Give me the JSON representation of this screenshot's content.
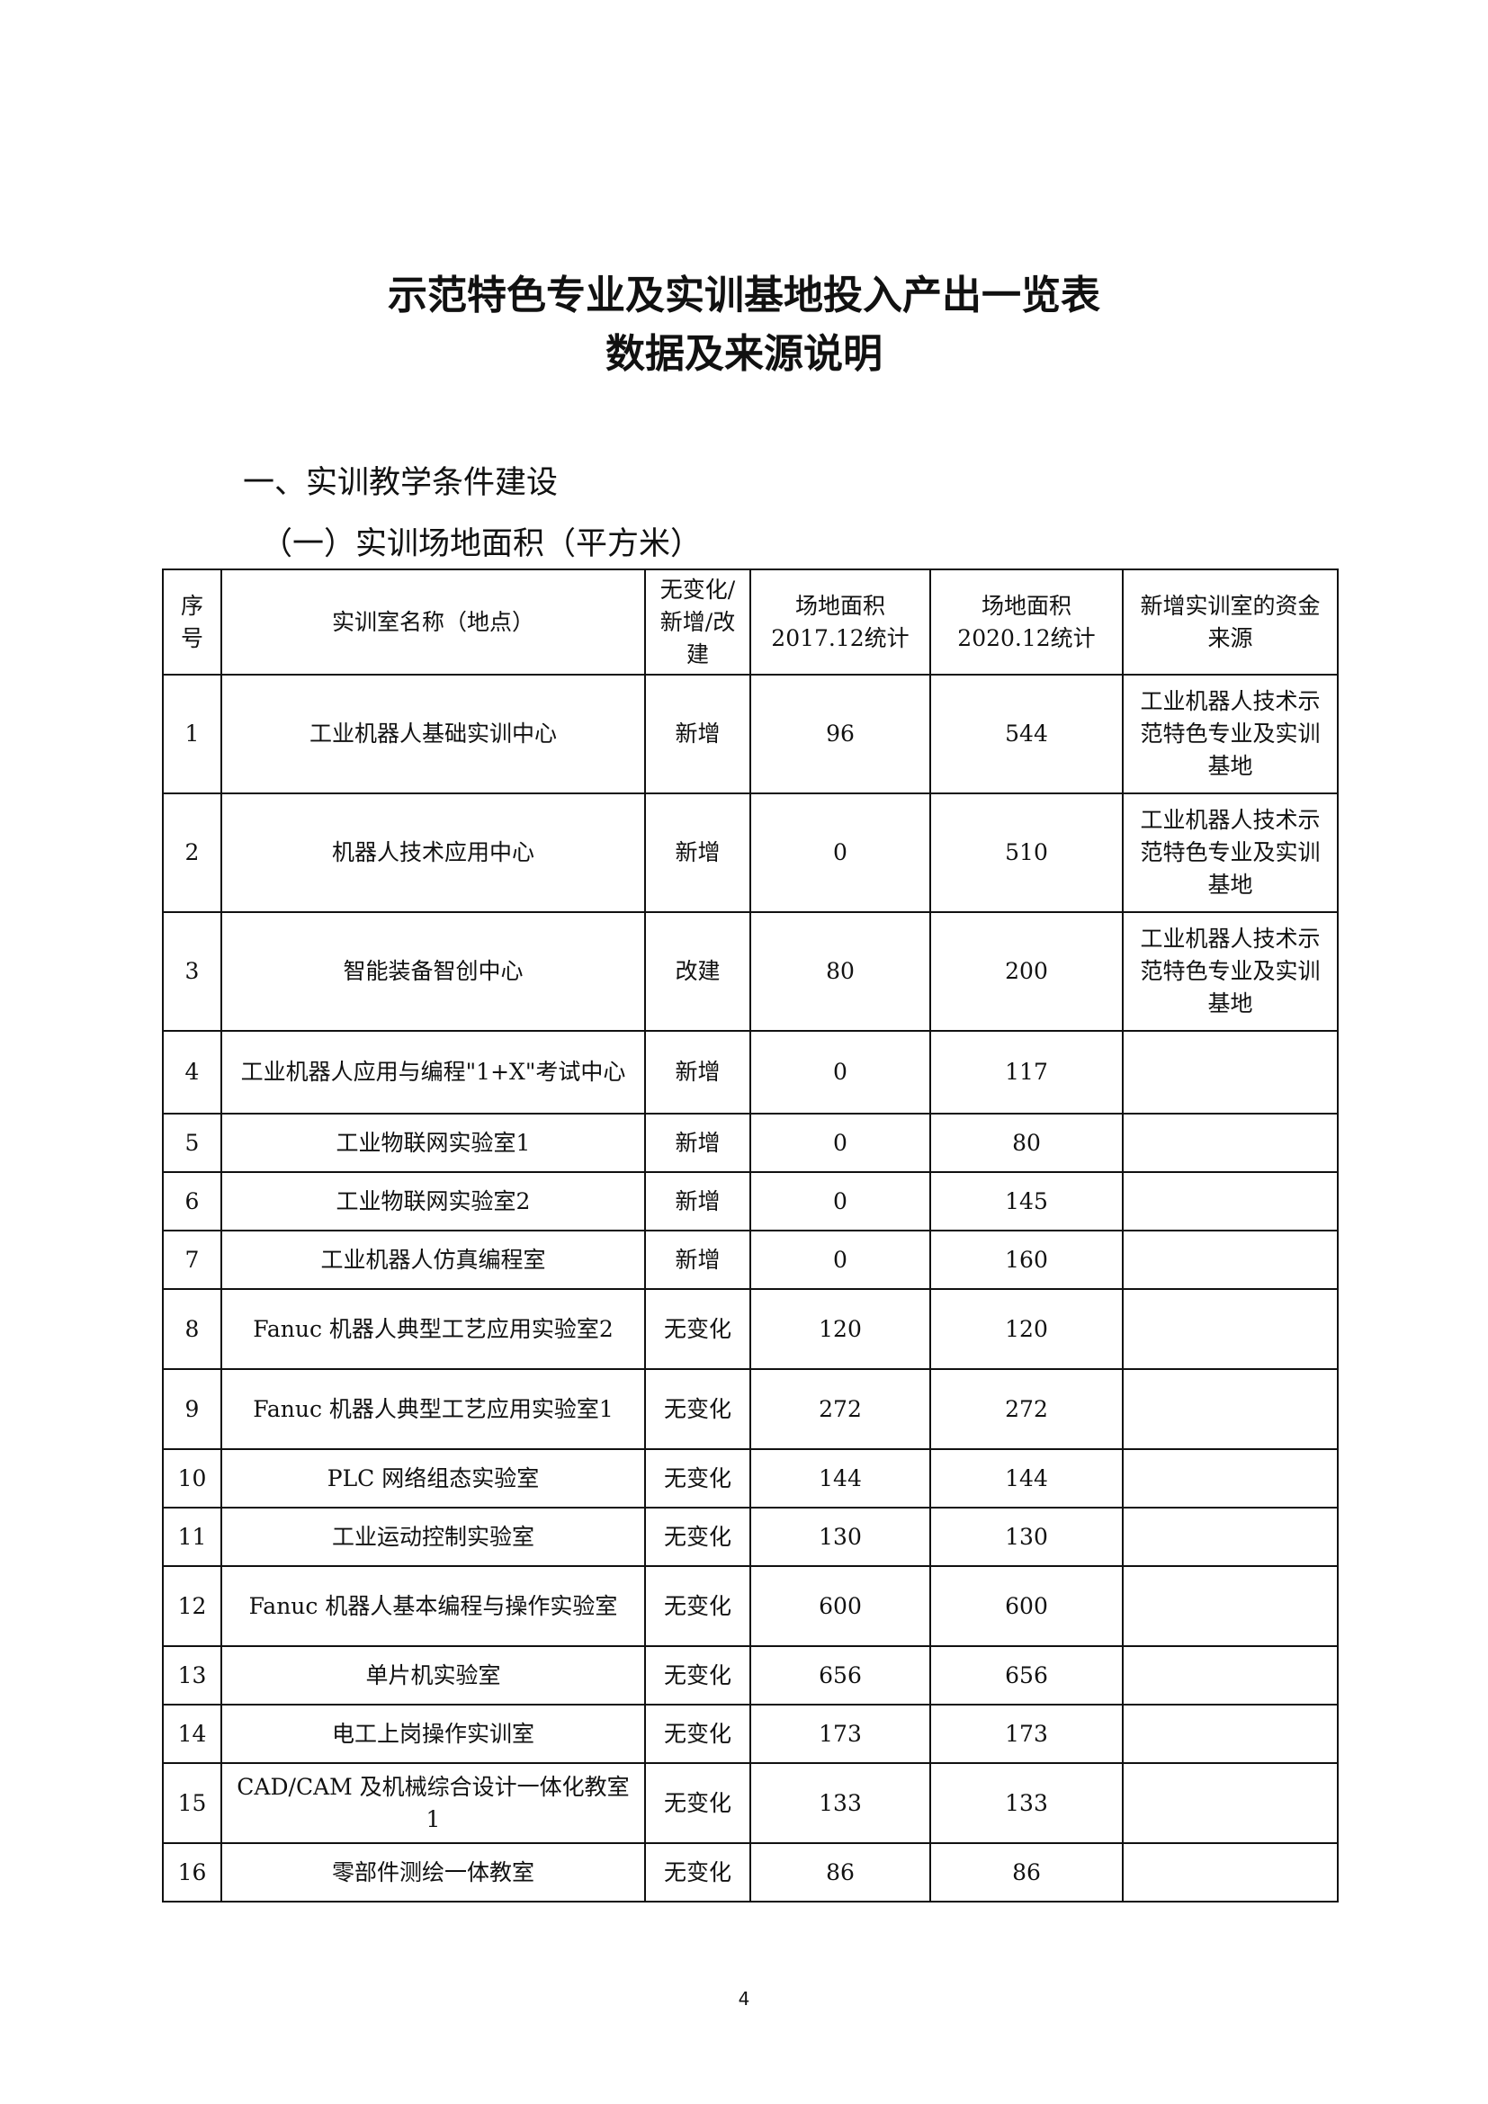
{
  "title_line1": "示范特色专业及实训基地投入产出一览表",
  "title_line2": "数据及来源说明",
  "section": "一、实训教学条件建设",
  "subsection": "（一）实训场地面积（平方米）",
  "table": {
    "headers": [
      "序号",
      "实训室名称（地点）",
      "无变化/新增/改建",
      "场地面积2017.12统计",
      "场地面积2020.12统计",
      "新增实训室的资金来源"
    ],
    "rows": [
      [
        "1",
        "工业机器人基础实训中心",
        "新增",
        "96",
        "544",
        "工业机器人技术示范特色专业及实训基地"
      ],
      [
        "2",
        "机器人技术应用中心",
        "新增",
        "0",
        "510",
        "工业机器人技术示范特色专业及实训基地"
      ],
      [
        "3",
        "智能装备智创中心",
        "改建",
        "80",
        "200",
        "工业机器人技术示范特色专业及实训基地"
      ],
      [
        "4",
        "工业机器人应用与编程\"1+X\"考试中心",
        "新增",
        "0",
        "117",
        ""
      ],
      [
        "5",
        "工业物联网实验室1",
        "新增",
        "0",
        "80",
        ""
      ],
      [
        "6",
        "工业物联网实验室2",
        "新增",
        "0",
        "145",
        ""
      ],
      [
        "7",
        "工业机器人仿真编程室",
        "新增",
        "0",
        "160",
        ""
      ],
      [
        "8",
        "Fanuc 机器人典型工艺应用实验室2",
        "无变化",
        "120",
        "120",
        ""
      ],
      [
        "9",
        "Fanuc 机器人典型工艺应用实验室1",
        "无变化",
        "272",
        "272",
        ""
      ],
      [
        "10",
        "PLC 网络组态实验室",
        "无变化",
        "144",
        "144",
        ""
      ],
      [
        "11",
        "工业运动控制实验室",
        "无变化",
        "130",
        "130",
        ""
      ],
      [
        "12",
        "Fanuc 机器人基本编程与操作实验室",
        "无变化",
        "600",
        "600",
        ""
      ],
      [
        "13",
        "单片机实验室",
        "无变化",
        "656",
        "656",
        ""
      ],
      [
        "14",
        "电工上岗操作实训室",
        "无变化",
        "173",
        "173",
        ""
      ],
      [
        "15",
        "CAD/CAM 及机械综合设计一体化教室1",
        "无变化",
        "133",
        "133",
        ""
      ],
      [
        "16",
        "零部件测绘一体教室",
        "无变化",
        "86",
        "86",
        ""
      ]
    ]
  },
  "page_number": "4"
}
